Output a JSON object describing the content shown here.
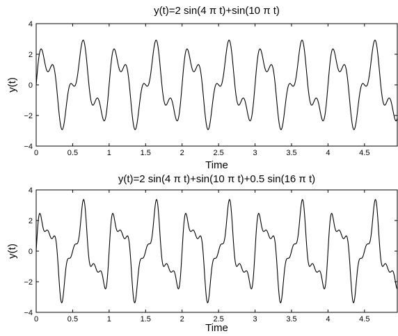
{
  "chart_data": [
    {
      "type": "line",
      "title": "y(t)=2 sin(4 π t)+sin(10 π t)",
      "xlabel": "Time",
      "ylabel": "y(t)",
      "xlim": [
        0,
        4.95
      ],
      "ylim": [
        -4,
        4
      ],
      "x_ticks": [
        0,
        0.5,
        1,
        1.5,
        2,
        2.5,
        3,
        3.5,
        4,
        4.5
      ],
      "x_tick_labels": [
        "0",
        "0.5",
        "1",
        "1.5",
        "2",
        "2.5",
        "3",
        "3.5",
        "4",
        "4.5"
      ],
      "y_ticks": [
        -4,
        -2,
        0,
        2,
        4
      ],
      "y_tick_labels": [
        "−4",
        "−2",
        "0",
        "2",
        "4"
      ],
      "grid": false,
      "series": [
        {
          "t_start": 0,
          "t_end": 4.95,
          "samples": 1200,
          "components": [
            {
              "amplitude": 2,
              "frequency_hz": 2
            },
            {
              "amplitude": 1,
              "frequency_hz": 5
            }
          ]
        }
      ]
    },
    {
      "type": "line",
      "title": "y(t)=2 sin(4 π t)+sin(10 π t)+0.5 sin(16 π t)",
      "xlabel": "Time",
      "ylabel": "y(t)",
      "xlim": [
        0,
        4.95
      ],
      "ylim": [
        -4,
        4
      ],
      "x_ticks": [
        0,
        0.5,
        1,
        1.5,
        2,
        2.5,
        3,
        3.5,
        4,
        4.5
      ],
      "x_tick_labels": [
        "0",
        "0.5",
        "1",
        "1.5",
        "2",
        "2.5",
        "3",
        "3.5",
        "4",
        "4.5"
      ],
      "y_ticks": [
        -4,
        -2,
        0,
        2,
        4
      ],
      "y_tick_labels": [
        "−4",
        "−2",
        "0",
        "2",
        "4"
      ],
      "grid": false,
      "series": [
        {
          "t_start": 0,
          "t_end": 4.95,
          "samples": 1200,
          "components": [
            {
              "amplitude": 2,
              "frequency_hz": 2
            },
            {
              "amplitude": 1,
              "frequency_hz": 5
            },
            {
              "amplitude": 0.5,
              "frequency_hz": 8
            }
          ]
        }
      ]
    }
  ]
}
